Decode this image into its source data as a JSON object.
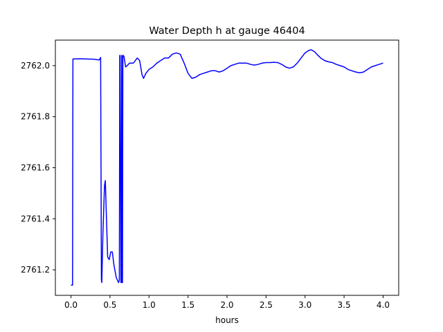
{
  "chart_data": {
    "type": "line",
    "title": "Water Depth h at gauge 46404",
    "xlabel": "hours",
    "ylabel": "",
    "xlim": [
      -0.2,
      4.2
    ],
    "ylim": [
      2761.1,
      2762.1
    ],
    "xticks": [
      0.0,
      0.5,
      1.0,
      1.5,
      2.0,
      2.5,
      3.0,
      3.5,
      4.0
    ],
    "xtick_labels": [
      "0.0",
      "0.5",
      "1.0",
      "1.5",
      "2.0",
      "2.5",
      "3.0",
      "3.5",
      "4.0"
    ],
    "yticks": [
      2761.2,
      2761.4,
      2761.6,
      2761.8,
      2762.0
    ],
    "ytick_labels": [
      "2761.2",
      "2761.4",
      "2761.6",
      "2761.8",
      "2762.0"
    ],
    "grid": false,
    "series": [
      {
        "color": "#0000ff",
        "x": [
          0.0,
          0.02,
          0.025,
          0.1,
          0.2,
          0.3,
          0.36,
          0.38,
          0.39,
          0.395,
          0.41,
          0.43,
          0.44,
          0.45,
          0.47,
          0.49,
          0.51,
          0.53,
          0.55,
          0.58,
          0.61,
          0.62,
          0.625,
          0.63,
          0.64,
          0.645,
          0.65,
          0.655,
          0.66,
          0.665,
          0.67,
          0.68,
          0.7,
          0.72,
          0.75,
          0.8,
          0.85,
          0.88,
          0.91,
          0.93,
          0.96,
          1.0,
          1.05,
          1.1,
          1.15,
          1.2,
          1.25,
          1.3,
          1.35,
          1.4,
          1.45,
          1.5,
          1.55,
          1.6,
          1.65,
          1.7,
          1.75,
          1.8,
          1.85,
          1.9,
          1.95,
          2.0,
          2.05,
          2.1,
          2.15,
          2.2,
          2.25,
          2.3,
          2.35,
          2.4,
          2.45,
          2.5,
          2.55,
          2.6,
          2.65,
          2.7,
          2.75,
          2.8,
          2.85,
          2.9,
          2.95,
          3.0,
          3.05,
          3.08,
          3.12,
          3.15,
          3.2,
          3.25,
          3.3,
          3.35,
          3.4,
          3.45,
          3.5,
          3.55,
          3.6,
          3.65,
          3.7,
          3.75,
          3.8,
          3.85,
          3.9,
          3.95,
          4.0
        ],
        "y": [
          2761.14,
          2761.14,
          2762.026,
          2762.027,
          2762.026,
          2762.025,
          2762.022,
          2762.032,
          2761.16,
          2761.15,
          2761.35,
          2761.53,
          2761.55,
          2761.45,
          2761.25,
          2761.24,
          2761.27,
          2761.27,
          2761.22,
          2761.17,
          2761.15,
          2761.16,
          2762.04,
          2762.04,
          2761.15,
          2761.15,
          2762.04,
          2761.15,
          2761.15,
          2762.04,
          2762.04,
          2762.035,
          2761.995,
          2762.0,
          2762.01,
          2762.01,
          2762.03,
          2762.02,
          2761.965,
          2761.95,
          2761.97,
          2761.985,
          2761.995,
          2762.01,
          2762.02,
          2762.03,
          2762.03,
          2762.045,
          2762.05,
          2762.045,
          2762.01,
          2761.97,
          2761.95,
          2761.955,
          2761.965,
          2761.97,
          2761.975,
          2761.98,
          2761.98,
          2761.975,
          2761.98,
          2761.99,
          2762.0,
          2762.005,
          2762.01,
          2762.01,
          2762.01,
          2762.005,
          2762.002,
          2762.005,
          2762.01,
          2762.012,
          2762.012,
          2762.013,
          2762.012,
          2762.005,
          2761.995,
          2761.99,
          2761.995,
          2762.01,
          2762.03,
          2762.05,
          2762.06,
          2762.062,
          2762.055,
          2762.045,
          2762.03,
          2762.02,
          2762.015,
          2762.012,
          2762.005,
          2762.0,
          2761.995,
          2761.985,
          2761.98,
          2761.975,
          2761.972,
          2761.975,
          2761.985,
          2761.995,
          2762.0,
          2762.005,
          2762.01
        ]
      }
    ]
  }
}
